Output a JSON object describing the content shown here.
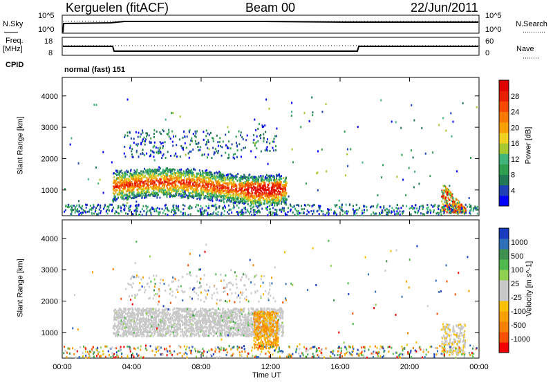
{
  "header": {
    "station": "Kerguelen (fitACF)",
    "beam": "Beam 00",
    "date": "22/Jun/2011"
  },
  "top_panels": {
    "nsky_label": "N.Sky",
    "nsky_ticks": [
      "10^5",
      "10^0"
    ],
    "nsearch_label": "N.Search",
    "nsearch_ticks": [
      "10^5",
      "10^0"
    ],
    "freq_label": "Freq.",
    "freq_unit": "[MHz]",
    "freq_ticks": [
      "18",
      "8"
    ],
    "nave_label": "Nave",
    "nave_ticks": [
      "60",
      "0"
    ],
    "cpid_label": "CPID",
    "cpid_text": "normal (fast) 151"
  },
  "chart_data": [
    {
      "type": "heatmap",
      "name": "power",
      "ylabel": "Slant Range [km]",
      "ylim": [
        180,
        4590
      ],
      "yticks": [
        1000,
        2000,
        3000,
        4000
      ],
      "colorbar_label": "Power [dB]",
      "colorbar_ticks": [
        4,
        8,
        12,
        16,
        20,
        24,
        28
      ],
      "colors": [
        "#0000ff",
        "#1f3fb4",
        "#227755",
        "#2f9f4f",
        "#40b47a",
        "#a8c830",
        "#f0d020",
        "#f8a000",
        "#f87800",
        "#f84800",
        "#e82000",
        "#e00000"
      ],
      "xlim": [
        0,
        24
      ],
      "regions": [
        {
          "t0": 2.9,
          "t1": 12.9,
          "r0": 800,
          "r1": 1800,
          "cls": "F-region echo band",
          "level": [
            8,
            28
          ]
        },
        {
          "t0": 3.2,
          "t1": 12.4,
          "r0": 2000,
          "r1": 3100,
          "cls": "scattered upper echoes",
          "level": [
            4,
            12
          ]
        },
        {
          "t0": 21.8,
          "t1": 23.2,
          "r0": 250,
          "r1": 1400,
          "cls": "late echoes",
          "level": [
            6,
            30
          ]
        },
        {
          "t0": 0,
          "t1": 24,
          "r0": 200,
          "r1": 600,
          "cls": "ground scatter",
          "level": [
            4,
            12
          ]
        }
      ]
    },
    {
      "type": "heatmap",
      "name": "velocity",
      "ylabel": "Slant Range [km]",
      "xlabel": "Time UT",
      "ylim": [
        180,
        4590
      ],
      "yticks": [
        1000,
        2000,
        3000,
        4000
      ],
      "colorbar_label": "Velocity [m s^-1]",
      "colorbar_ticks": [
        1000,
        500,
        100,
        25,
        -25,
        -100,
        -500,
        -1000
      ],
      "colors": [
        "#1a3cc0",
        "#2f6fb8",
        "#3f8f4f",
        "#4fb84f",
        "#90d050",
        "#c8c8c8",
        "#c8c8c8",
        "#f8c000",
        "#f8a000",
        "#f88000",
        "#f85000",
        "#f00000"
      ],
      "xlim": [
        0,
        24
      ],
      "xticks": [
        "00:00",
        "04:00",
        "08:00",
        "12:00",
        "16:00",
        "20:00",
        "00:00"
      ],
      "regions": [
        {
          "t0": 2.9,
          "t1": 12.7,
          "r0": 900,
          "r1": 1800,
          "cls": "low-velocity band"
        },
        {
          "t0": 11.0,
          "t1": 12.4,
          "r0": 500,
          "r1": 1700,
          "cls": "negative velocity patch"
        },
        {
          "t0": 21.9,
          "t1": 23.2,
          "r0": 300,
          "r1": 1300,
          "cls": "late echoes"
        }
      ]
    }
  ]
}
